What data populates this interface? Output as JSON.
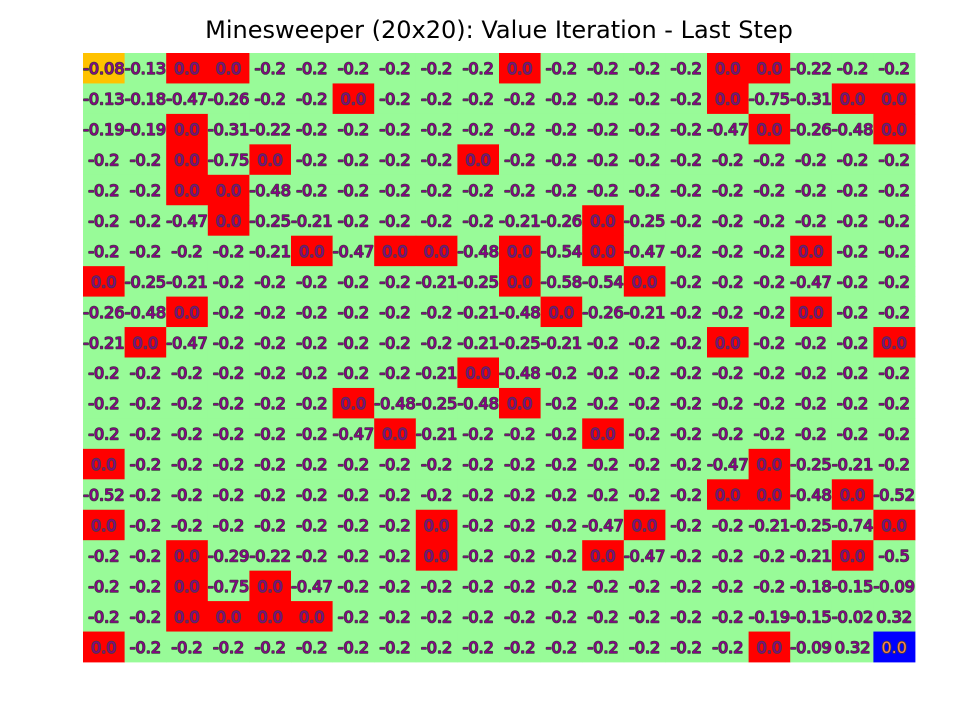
{
  "chart_data": {
    "type": "heatmap",
    "title": "Minesweeper (20x20): Value Iteration - Last Step",
    "rows": 20,
    "cols": 20,
    "colors": {
      "safe": "#98fb98",
      "mine": "#ff0000",
      "start": "#ffc200",
      "goal": "#0000ff",
      "text_fill": "#8b008b",
      "text_stroke": "#404040"
    },
    "start_cell": [
      0,
      0
    ],
    "goal_cell": [
      19,
      19
    ],
    "values": [
      [
        "-0.08",
        "-0.13",
        "0.0",
        "0.0",
        "-0.2",
        "-0.2",
        "-0.2",
        "-0.2",
        "-0.2",
        "-0.2",
        "0.0",
        "-0.2",
        "-0.2",
        "-0.2",
        "-0.2",
        "0.0",
        "0.0",
        "-0.22",
        "-0.2",
        "-0.2"
      ],
      [
        "-0.13",
        "-0.18",
        "-0.47",
        "-0.26",
        "-0.2",
        "-0.2",
        "0.0",
        "-0.2",
        "-0.2",
        "-0.2",
        "-0.2",
        "-0.2",
        "-0.2",
        "-0.2",
        "-0.2",
        "0.0",
        "-0.75",
        "-0.31",
        "0.0",
        "0.0"
      ],
      [
        "-0.19",
        "-0.19",
        "0.0",
        "-0.31",
        "-0.22",
        "-0.2",
        "-0.2",
        "-0.2",
        "-0.2",
        "-0.2",
        "-0.2",
        "-0.2",
        "-0.2",
        "-0.2",
        "-0.2",
        "-0.47",
        "0.0",
        "-0.26",
        "-0.48",
        "0.0"
      ],
      [
        "-0.2",
        "-0.2",
        "0.0",
        "-0.75",
        "0.0",
        "-0.2",
        "-0.2",
        "-0.2",
        "-0.2",
        "0.0",
        "-0.2",
        "-0.2",
        "-0.2",
        "-0.2",
        "-0.2",
        "-0.2",
        "-0.2",
        "-0.2",
        "-0.2",
        "-0.2"
      ],
      [
        "-0.2",
        "-0.2",
        "0.0",
        "0.0",
        "-0.48",
        "-0.2",
        "-0.2",
        "-0.2",
        "-0.2",
        "-0.2",
        "-0.2",
        "-0.2",
        "-0.2",
        "-0.2",
        "-0.2",
        "-0.2",
        "-0.2",
        "-0.2",
        "-0.2",
        "-0.2"
      ],
      [
        "-0.2",
        "-0.2",
        "-0.47",
        "0.0",
        "-0.25",
        "-0.21",
        "-0.2",
        "-0.2",
        "-0.2",
        "-0.2",
        "-0.21",
        "-0.26",
        "0.0",
        "-0.25",
        "-0.2",
        "-0.2",
        "-0.2",
        "-0.2",
        "-0.2",
        "-0.2"
      ],
      [
        "-0.2",
        "-0.2",
        "-0.2",
        "-0.2",
        "-0.21",
        "0.0",
        "-0.47",
        "0.0",
        "0.0",
        "-0.48",
        "0.0",
        "-0.54",
        "0.0",
        "-0.47",
        "-0.2",
        "-0.2",
        "-0.2",
        "0.0",
        "-0.2",
        "-0.2"
      ],
      [
        "0.0",
        "-0.25",
        "-0.21",
        "-0.2",
        "-0.2",
        "-0.2",
        "-0.2",
        "-0.2",
        "-0.21",
        "-0.25",
        "0.0",
        "-0.58",
        "-0.54",
        "0.0",
        "-0.2",
        "-0.2",
        "-0.2",
        "-0.47",
        "-0.2",
        "-0.2"
      ],
      [
        "-0.26",
        "-0.48",
        "0.0",
        "-0.2",
        "-0.2",
        "-0.2",
        "-0.2",
        "-0.2",
        "-0.2",
        "-0.21",
        "-0.48",
        "0.0",
        "-0.26",
        "-0.21",
        "-0.2",
        "-0.2",
        "-0.2",
        "0.0",
        "-0.2",
        "-0.2"
      ],
      [
        "-0.21",
        "0.0",
        "-0.47",
        "-0.2",
        "-0.2",
        "-0.2",
        "-0.2",
        "-0.2",
        "-0.2",
        "-0.21",
        "-0.25",
        "-0.21",
        "-0.2",
        "-0.2",
        "-0.2",
        "0.0",
        "-0.2",
        "-0.2",
        "-0.2",
        "0.0"
      ],
      [
        "-0.2",
        "-0.2",
        "-0.2",
        "-0.2",
        "-0.2",
        "-0.2",
        "-0.2",
        "-0.2",
        "-0.21",
        "0.0",
        "-0.48",
        "-0.2",
        "-0.2",
        "-0.2",
        "-0.2",
        "-0.2",
        "-0.2",
        "-0.2",
        "-0.2",
        "-0.2"
      ],
      [
        "-0.2",
        "-0.2",
        "-0.2",
        "-0.2",
        "-0.2",
        "-0.2",
        "0.0",
        "-0.48",
        "-0.25",
        "-0.48",
        "0.0",
        "-0.2",
        "-0.2",
        "-0.2",
        "-0.2",
        "-0.2",
        "-0.2",
        "-0.2",
        "-0.2",
        "-0.2"
      ],
      [
        "-0.2",
        "-0.2",
        "-0.2",
        "-0.2",
        "-0.2",
        "-0.2",
        "-0.47",
        "0.0",
        "-0.21",
        "-0.2",
        "-0.2",
        "-0.2",
        "0.0",
        "-0.2",
        "-0.2",
        "-0.2",
        "-0.2",
        "-0.2",
        "-0.2",
        "-0.2"
      ],
      [
        "0.0",
        "-0.2",
        "-0.2",
        "-0.2",
        "-0.2",
        "-0.2",
        "-0.2",
        "-0.2",
        "-0.2",
        "-0.2",
        "-0.2",
        "-0.2",
        "-0.2",
        "-0.2",
        "-0.2",
        "-0.47",
        "0.0",
        "-0.25",
        "-0.21",
        "-0.2"
      ],
      [
        "-0.52",
        "-0.2",
        "-0.2",
        "-0.2",
        "-0.2",
        "-0.2",
        "-0.2",
        "-0.2",
        "-0.2",
        "-0.2",
        "-0.2",
        "-0.2",
        "-0.2",
        "-0.2",
        "-0.2",
        "0.0",
        "0.0",
        "-0.48",
        "0.0",
        "-0.52"
      ],
      [
        "0.0",
        "-0.2",
        "-0.2",
        "-0.2",
        "-0.2",
        "-0.2",
        "-0.2",
        "-0.2",
        "0.0",
        "-0.2",
        "-0.2",
        "-0.2",
        "-0.47",
        "0.0",
        "-0.2",
        "-0.2",
        "-0.21",
        "-0.25",
        "-0.74",
        "0.0"
      ],
      [
        "-0.2",
        "-0.2",
        "0.0",
        "-0.29",
        "-0.22",
        "-0.2",
        "-0.2",
        "-0.2",
        "0.0",
        "-0.2",
        "-0.2",
        "-0.2",
        "0.0",
        "-0.47",
        "-0.2",
        "-0.2",
        "-0.2",
        "-0.21",
        "0.0",
        "-0.5"
      ],
      [
        "-0.2",
        "-0.2",
        "0.0",
        "-0.75",
        "0.0",
        "-0.47",
        "-0.2",
        "-0.2",
        "-0.2",
        "-0.2",
        "-0.2",
        "-0.2",
        "-0.2",
        "-0.2",
        "-0.2",
        "-0.2",
        "-0.2",
        "-0.18",
        "-0.15",
        "-0.09"
      ],
      [
        "-0.2",
        "-0.2",
        "0.0",
        "0.0",
        "0.0",
        "0.0",
        "-0.2",
        "-0.2",
        "-0.2",
        "-0.2",
        "-0.2",
        "-0.2",
        "-0.2",
        "-0.2",
        "-0.2",
        "-0.2",
        "-0.19",
        "-0.15",
        "-0.02",
        "0.32"
      ],
      [
        "0.0",
        "-0.2",
        "-0.2",
        "-0.2",
        "-0.2",
        "-0.2",
        "-0.2",
        "-0.2",
        "-0.2",
        "-0.2",
        "-0.2",
        "-0.2",
        "-0.2",
        "-0.2",
        "-0.2",
        "-0.2",
        "0.0",
        "-0.09",
        "0.32",
        "0.0"
      ]
    ],
    "mines": [
      [
        0,
        2
      ],
      [
        0,
        3
      ],
      [
        0,
        10
      ],
      [
        0,
        15
      ],
      [
        0,
        16
      ],
      [
        1,
        6
      ],
      [
        1,
        15
      ],
      [
        1,
        18
      ],
      [
        1,
        19
      ],
      [
        2,
        2
      ],
      [
        2,
        16
      ],
      [
        2,
        19
      ],
      [
        3,
        2
      ],
      [
        3,
        4
      ],
      [
        3,
        9
      ],
      [
        4,
        2
      ],
      [
        4,
        3
      ],
      [
        5,
        3
      ],
      [
        5,
        12
      ],
      [
        6,
        5
      ],
      [
        6,
        7
      ],
      [
        6,
        8
      ],
      [
        6,
        10
      ],
      [
        6,
        12
      ],
      [
        6,
        17
      ],
      [
        7,
        0
      ],
      [
        7,
        10
      ],
      [
        7,
        13
      ],
      [
        8,
        2
      ],
      [
        8,
        11
      ],
      [
        8,
        17
      ],
      [
        9,
        1
      ],
      [
        9,
        15
      ],
      [
        9,
        19
      ],
      [
        10,
        9
      ],
      [
        11,
        6
      ],
      [
        11,
        10
      ],
      [
        12,
        7
      ],
      [
        12,
        12
      ],
      [
        13,
        0
      ],
      [
        13,
        16
      ],
      [
        14,
        15
      ],
      [
        14,
        16
      ],
      [
        14,
        18
      ],
      [
        15,
        0
      ],
      [
        15,
        8
      ],
      [
        15,
        13
      ],
      [
        15,
        19
      ],
      [
        16,
        2
      ],
      [
        16,
        8
      ],
      [
        16,
        12
      ],
      [
        16,
        18
      ],
      [
        17,
        2
      ],
      [
        17,
        4
      ],
      [
        18,
        2
      ],
      [
        18,
        3
      ],
      [
        18,
        4
      ],
      [
        18,
        5
      ],
      [
        19,
        0
      ],
      [
        19,
        16
      ]
    ]
  }
}
